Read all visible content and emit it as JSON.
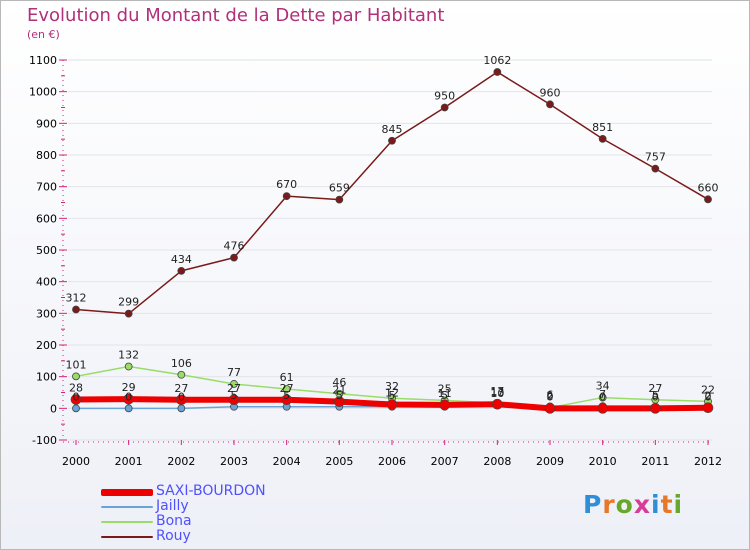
{
  "header": {
    "title": "Evolution du Montant de la Dette par Habitant",
    "subtitle": "(en €)"
  },
  "logo": {
    "letters": [
      "P",
      "r",
      "o",
      "x",
      "i",
      "t",
      "i"
    ],
    "colors": [
      "#2f8ed8",
      "#e8772a",
      "#67a82a",
      "#d93b96",
      "#2f8ed8",
      "#e8772a",
      "#67a82a"
    ]
  },
  "chart_data": {
    "type": "line",
    "title": "Evolution du Montant de la Dette par Habitant",
    "ylabel": "(en €)",
    "xlabel": "",
    "ylim": [
      -100,
      1100
    ],
    "yticks": [
      -100,
      0,
      100,
      200,
      300,
      400,
      500,
      600,
      700,
      800,
      900,
      1000,
      1100
    ],
    "categories": [
      "2000",
      "2001",
      "2002",
      "2003",
      "2004",
      "2005",
      "2006",
      "2007",
      "2008",
      "2009",
      "2010",
      "2011",
      "2012"
    ],
    "legend_position": "bottom-left",
    "series": [
      {
        "name": "SAXI-BOURDON",
        "color": "#ee0000",
        "values": [
          28,
          29,
          27,
          27,
          27,
          21,
          12,
          11,
          13,
          0,
          0,
          0,
          2
        ]
      },
      {
        "name": "Jailly",
        "color": "#6aa3d5",
        "values": [
          0,
          0,
          0,
          5,
          5,
          5,
          5,
          5,
          10,
          6,
          7,
          5,
          0
        ]
      },
      {
        "name": "Bona",
        "color": "#99dd66",
        "values": [
          101,
          132,
          106,
          77,
          61,
          46,
          32,
          25,
          17,
          2,
          34,
          27,
          22
        ]
      },
      {
        "name": "Rouy",
        "color": "#7a1a1a",
        "values": [
          312,
          299,
          434,
          476,
          670,
          659,
          845,
          950,
          1062,
          960,
          851,
          757,
          660
        ]
      }
    ]
  }
}
